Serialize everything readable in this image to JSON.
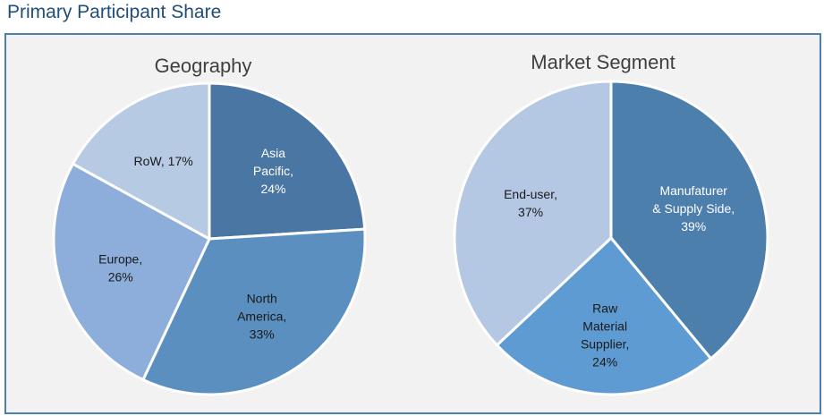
{
  "page_title": "Primary Participant Share",
  "chart_data": [
    {
      "type": "pie",
      "title": "Geography",
      "slices": [
        {
          "label": [
            "Asia",
            "Pacific,",
            "24%"
          ],
          "name": "Asia Pacific",
          "value": 24,
          "color": "#4a76a3"
        },
        {
          "label": [
            "North",
            "America,",
            "33%"
          ],
          "name": "North America",
          "value": 33,
          "color": "#5a8fc0"
        },
        {
          "label": [
            "Europe,",
            "26%"
          ],
          "name": "Europe",
          "value": 26,
          "color": "#8daedb"
        },
        {
          "label": [
            "RoW, 17%"
          ],
          "name": "RoW",
          "value": 17,
          "color": "#b7cae3"
        }
      ]
    },
    {
      "type": "pie",
      "title": "Market Segment",
      "slices": [
        {
          "label": [
            "Manufaturer",
            "& Supply Side,",
            "39%"
          ],
          "name": "Manufaturer & Supply Side",
          "value": 39,
          "color": "#4d7fad"
        },
        {
          "label": [
            "Raw",
            "Material",
            "Supplier,",
            "24%"
          ],
          "name": "Raw Material Supplier",
          "value": 24,
          "color": "#5f9bd3"
        },
        {
          "label": [
            "End-user,",
            "37%"
          ],
          "name": "End-user",
          "value": 37,
          "color": "#b4c8e3"
        }
      ]
    }
  ]
}
